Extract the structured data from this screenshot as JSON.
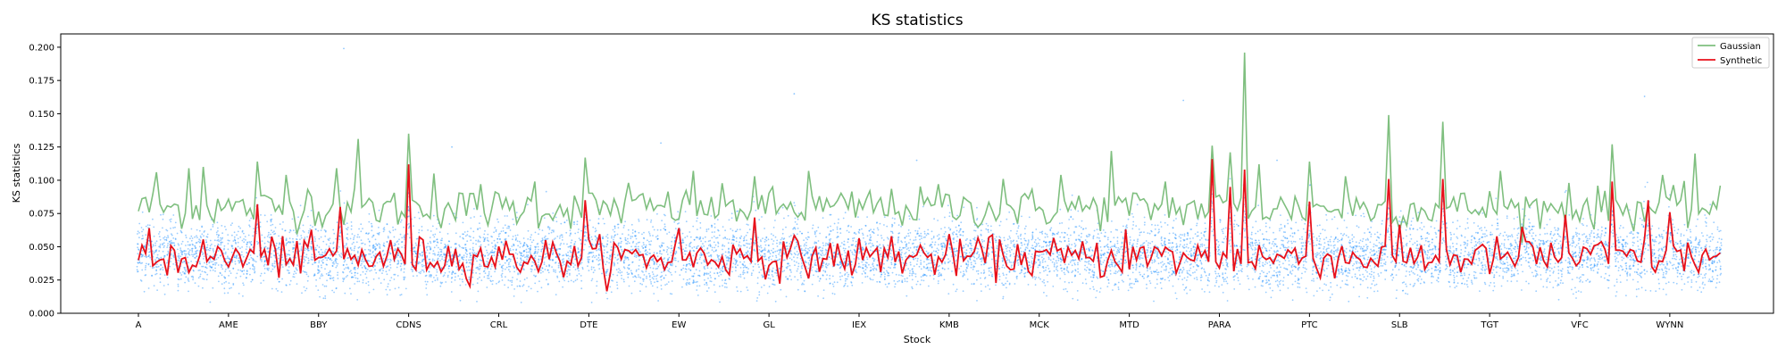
{
  "chart_data": {
    "type": "line",
    "title": "KS statistics",
    "xlabel": "Stock",
    "ylabel": "KS statistics",
    "ylim": [
      0.0,
      0.21
    ],
    "x_category_count": 481,
    "x_ticks": [
      {
        "index": 0,
        "label": "A"
      },
      {
        "index": 25,
        "label": "AME"
      },
      {
        "index": 50,
        "label": "BBY"
      },
      {
        "index": 75,
        "label": "CDNS"
      },
      {
        "index": 100,
        "label": "CRL"
      },
      {
        "index": 125,
        "label": "DTE"
      },
      {
        "index": 150,
        "label": "EW"
      },
      {
        "index": 175,
        "label": "GL"
      },
      {
        "index": 200,
        "label": "IEX"
      },
      {
        "index": 225,
        "label": "KMB"
      },
      {
        "index": 250,
        "label": "MCK"
      },
      {
        "index": 275,
        "label": "MTD"
      },
      {
        "index": 300,
        "label": "PARA"
      },
      {
        "index": 325,
        "label": "PTC"
      },
      {
        "index": 350,
        "label": "SLB"
      },
      {
        "index": 375,
        "label": "TGT"
      },
      {
        "index": 400,
        "label": "VFC"
      },
      {
        "index": 425,
        "label": "WYNN"
      }
    ],
    "y_ticks": [
      "0.000",
      "0.025",
      "0.050",
      "0.075",
      "0.100",
      "0.125",
      "0.150",
      "0.175",
      "0.200"
    ],
    "y_tick_values": [
      0.0,
      0.025,
      0.05,
      0.075,
      0.1,
      0.125,
      0.15,
      0.175,
      0.2
    ],
    "legend_position": "top-right",
    "series": [
      {
        "name": "Gaussian",
        "color": "#7fbf7f",
        "baseline": 0.079,
        "spikes": [
          [
            2,
            0.087
          ],
          [
            5,
            0.106
          ],
          [
            14,
            0.109
          ],
          [
            18,
            0.11
          ],
          [
            22,
            0.086
          ],
          [
            33,
            0.114
          ],
          [
            41,
            0.104
          ],
          [
            47,
            0.093
          ],
          [
            55,
            0.109
          ],
          [
            61,
            0.131
          ],
          [
            75,
            0.135
          ],
          [
            82,
            0.105
          ],
          [
            95,
            0.097
          ],
          [
            110,
            0.099
          ],
          [
            124,
            0.117
          ],
          [
            136,
            0.098
          ],
          [
            154,
            0.107
          ],
          [
            171,
            0.103
          ],
          [
            186,
            0.107
          ],
          [
            203,
            0.092
          ],
          [
            222,
            0.097
          ],
          [
            240,
            0.101
          ],
          [
            256,
            0.104
          ],
          [
            270,
            0.122
          ],
          [
            285,
            0.099
          ],
          [
            298,
            0.126
          ],
          [
            303,
            0.121
          ],
          [
            307,
            0.196
          ],
          [
            311,
            0.112
          ],
          [
            325,
            0.114
          ],
          [
            335,
            0.103
          ],
          [
            347,
            0.149
          ],
          [
            362,
            0.144
          ],
          [
            378,
            0.107
          ],
          [
            397,
            0.098
          ],
          [
            409,
            0.127
          ],
          [
            423,
            0.104
          ],
          [
            432,
            0.12
          ],
          [
            445,
            0.098
          ]
        ]
      },
      {
        "name": "Synthetic",
        "color": "#e8101a",
        "baseline": 0.042,
        "spikes": [
          [
            0,
            0.04
          ],
          [
            3,
            0.064
          ],
          [
            33,
            0.082
          ],
          [
            40,
            0.058
          ],
          [
            56,
            0.08
          ],
          [
            75,
            0.112
          ],
          [
            124,
            0.085
          ],
          [
            150,
            0.064
          ],
          [
            171,
            0.072
          ],
          [
            209,
            0.058
          ],
          [
            236,
            0.057
          ],
          [
            274,
            0.063
          ],
          [
            298,
            0.116
          ],
          [
            303,
            0.095
          ],
          [
            307,
            0.108
          ],
          [
            325,
            0.084
          ],
          [
            347,
            0.101
          ],
          [
            362,
            0.101
          ],
          [
            384,
            0.065
          ],
          [
            396,
            0.074
          ],
          [
            409,
            0.099
          ],
          [
            419,
            0.085
          ],
          [
            425,
            0.076
          ]
        ]
      }
    ],
    "scatter": {
      "color": "#1e90ff",
      "mean": 0.042,
      "spread": 0.012,
      "points_per_stock": 22
    },
    "outliers": [
      [
        57,
        0.199
      ],
      [
        87,
        0.125
      ],
      [
        145,
        0.128
      ],
      [
        182,
        0.165
      ],
      [
        216,
        0.115
      ],
      [
        290,
        0.16
      ],
      [
        316,
        0.115
      ],
      [
        418,
        0.163
      ]
    ],
    "n_stocks": 440
  }
}
